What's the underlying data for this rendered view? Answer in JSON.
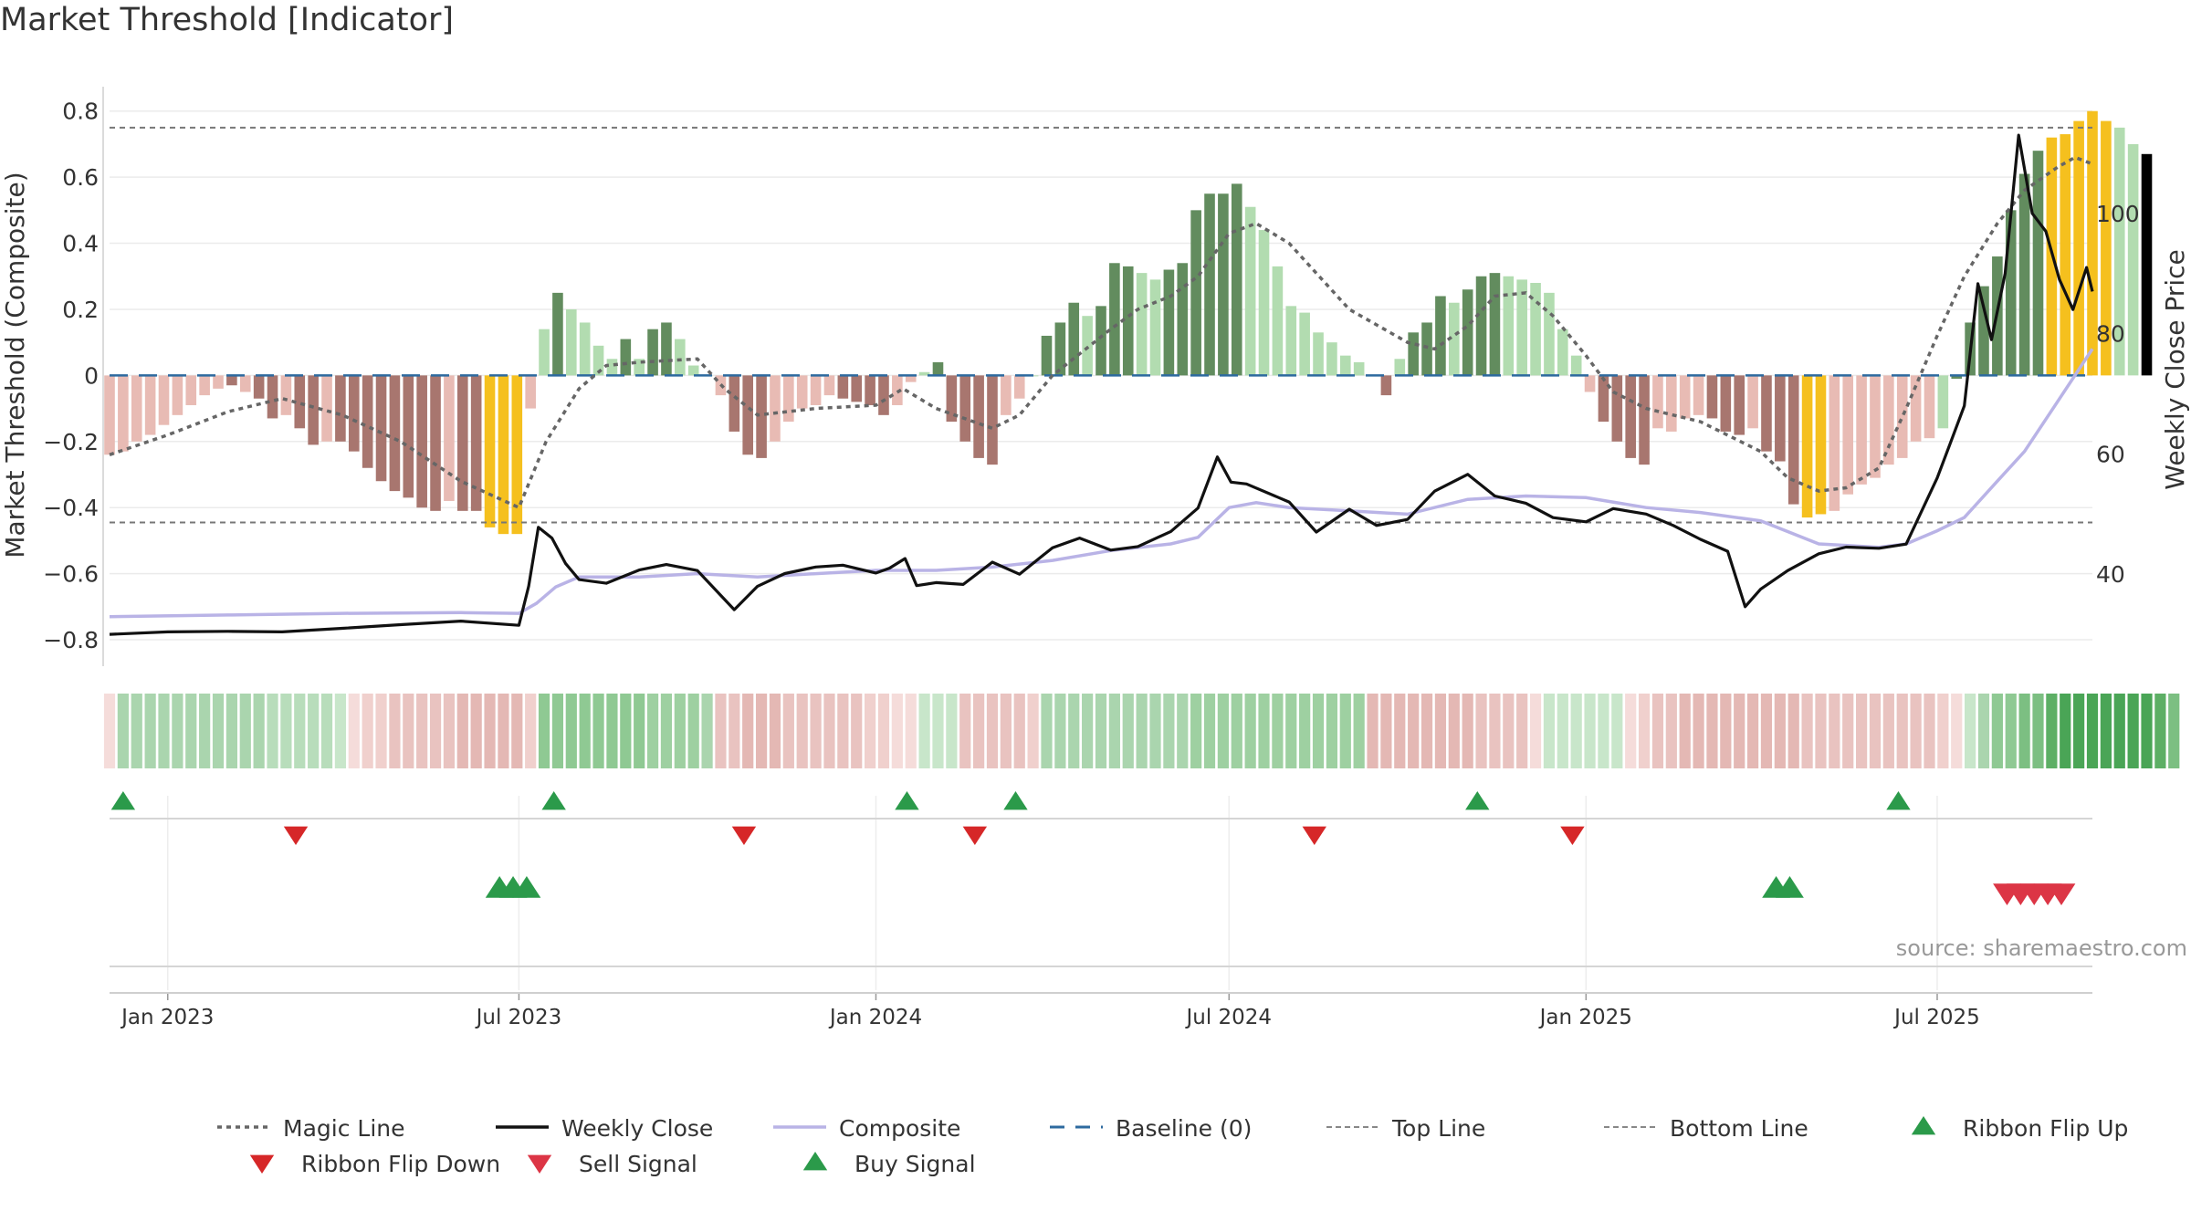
{
  "chart_data": {
    "type": "bar",
    "title": "Market Threshold [Indicator]",
    "ylabel_left": "Market Threshold (Composite)",
    "ylabel_right": "Weekly Close Price",
    "source": "source: sharemaestro.com",
    "left_axis": {
      "ylim": [
        -0.88,
        0.86
      ],
      "ticks": [
        -0.8,
        -0.6,
        -0.4,
        -0.2,
        0,
        0.2,
        0.4,
        0.6,
        0.8
      ],
      "tick_labels": [
        "−0.8",
        "−0.6",
        "−0.4",
        "−0.2",
        "0",
        "0.2",
        "0.4",
        "0.6",
        "0.8"
      ]
    },
    "right_axis": {
      "ylim": [
        24.7,
        120.3
      ],
      "ticks": [
        40,
        60,
        80,
        100
      ],
      "tick_labels": [
        "40",
        "60",
        "80",
        "100"
      ]
    },
    "top_line": 0.75,
    "bottom_line": -0.445,
    "x_axis": {
      "start": "2022-12-02",
      "end": "2025-09-19",
      "ticks": [
        "2023-01-01",
        "2023-07-01",
        "2024-01-01",
        "2024-07-01",
        "2025-01-01",
        "2025-07-01"
      ],
      "tick_labels": [
        "Jan 2023",
        "Jul 2023",
        "Jan 2024",
        "Jul 2024",
        "Jan 2025",
        "Jul 2025"
      ]
    },
    "composite_bars": {
      "start": "2022-12-02",
      "interval_days": 7,
      "values": [
        -0.24,
        -0.23,
        -0.2,
        -0.18,
        -0.15,
        -0.12,
        -0.09,
        -0.06,
        -0.04,
        -0.03,
        -0.05,
        -0.07,
        -0.13,
        -0.12,
        -0.16,
        -0.21,
        -0.2,
        -0.2,
        -0.23,
        -0.28,
        -0.32,
        -0.35,
        -0.37,
        -0.4,
        -0.41,
        -0.38,
        -0.41,
        -0.41,
        -0.46,
        -0.48,
        -0.48,
        -0.1,
        0.14,
        0.25,
        0.2,
        0.16,
        0.09,
        0.05,
        0.11,
        0.05,
        0.14,
        0.16,
        0.11,
        0.03,
        0.0,
        -0.06,
        -0.17,
        -0.24,
        -0.25,
        -0.2,
        -0.14,
        -0.1,
        -0.09,
        -0.06,
        -0.07,
        -0.08,
        -0.09,
        -0.12,
        -0.09,
        -0.02,
        0.01,
        0.04,
        -0.14,
        -0.2,
        -0.25,
        -0.27,
        -0.12,
        -0.07,
        0.0,
        0.12,
        0.16,
        0.22,
        0.18,
        0.21,
        0.34,
        0.33,
        0.31,
        0.29,
        0.32,
        0.34,
        0.5,
        0.55,
        0.55,
        0.58,
        0.51,
        0.44,
        0.33,
        0.21,
        0.19,
        0.13,
        0.1,
        0.06,
        0.04,
        0.0,
        -0.06,
        0.05,
        0.13,
        0.16,
        0.24,
        0.22,
        0.26,
        0.3,
        0.31,
        0.3,
        0.29,
        0.28,
        0.25,
        0.14,
        0.06,
        -0.05,
        -0.14,
        -0.2,
        -0.25,
        -0.27,
        -0.16,
        -0.17,
        -0.13,
        -0.12,
        -0.13,
        -0.17,
        -0.18,
        -0.16,
        -0.23,
        -0.26,
        -0.39,
        -0.43,
        -0.42,
        -0.41,
        -0.36,
        -0.33,
        -0.31,
        -0.27,
        -0.25,
        -0.2,
        -0.19,
        -0.16,
        -0.01,
        0.16,
        0.27,
        0.36,
        0.5,
        0.61,
        0.68,
        0.72,
        0.73,
        0.77,
        0.8,
        0.77,
        0.75,
        0.7,
        0.67
      ],
      "colors": [
        "#e8bbb4",
        "#e8bbb4",
        "#e8bbb4",
        "#e8bbb4",
        "#e8bbb4",
        "#e8bbb4",
        "#e8bbb4",
        "#e8bbb4",
        "#e8bbb4",
        "#a8766f",
        "#e8bbb4",
        "#a8766f",
        "#a8766f",
        "#e8bbb4",
        "#a8766f",
        "#a8766f",
        "#e8bbb4",
        "#a8766f",
        "#a8766f",
        "#a8766f",
        "#a8766f",
        "#a8766f",
        "#a8766f",
        "#a8766f",
        "#a8766f",
        "#e8bbb4",
        "#a8766f",
        "#a8766f",
        "#f5c01e",
        "#f5c01e",
        "#f5c01e",
        "#e8bbb4",
        "#b2dcb0",
        "#628c5e",
        "#b2dcb0",
        "#b2dcb0",
        "#b2dcb0",
        "#b2dcb0",
        "#628c5e",
        "#b2dcb0",
        "#628c5e",
        "#628c5e",
        "#b2dcb0",
        "#b2dcb0",
        "#b2dcb0",
        "#e8bbb4",
        "#a8766f",
        "#a8766f",
        "#a8766f",
        "#e8bbb4",
        "#e8bbb4",
        "#e8bbb4",
        "#e8bbb4",
        "#e8bbb4",
        "#a8766f",
        "#a8766f",
        "#a8766f",
        "#a8766f",
        "#e8bbb4",
        "#e8bbb4",
        "#b2dcb0",
        "#628c5e",
        "#a8766f",
        "#a8766f",
        "#a8766f",
        "#a8766f",
        "#e8bbb4",
        "#e8bbb4",
        "#b2dcb0",
        "#628c5e",
        "#628c5e",
        "#628c5e",
        "#b2dcb0",
        "#628c5e",
        "#628c5e",
        "#628c5e",
        "#b2dcb0",
        "#b2dcb0",
        "#628c5e",
        "#628c5e",
        "#628c5e",
        "#628c5e",
        "#628c5e",
        "#628c5e",
        "#b2dcb0",
        "#b2dcb0",
        "#b2dcb0",
        "#b2dcb0",
        "#b2dcb0",
        "#b2dcb0",
        "#b2dcb0",
        "#b2dcb0",
        "#b2dcb0",
        "#b2dcb0",
        "#a8766f",
        "#b2dcb0",
        "#628c5e",
        "#628c5e",
        "#628c5e",
        "#b2dcb0",
        "#628c5e",
        "#628c5e",
        "#628c5e",
        "#b2dcb0",
        "#b2dcb0",
        "#b2dcb0",
        "#b2dcb0",
        "#b2dcb0",
        "#b2dcb0",
        "#e8bbb4",
        "#a8766f",
        "#a8766f",
        "#a8766f",
        "#a8766f",
        "#e8bbb4",
        "#e8bbb4",
        "#e8bbb4",
        "#e8bbb4",
        "#a8766f",
        "#a8766f",
        "#a8766f",
        "#e8bbb4",
        "#a8766f",
        "#a8766f",
        "#a8766f",
        "#f5c01e",
        "#f5c01e",
        "#e8bbb4",
        "#e8bbb4",
        "#e8bbb4",
        "#e8bbb4",
        "#e8bbb4",
        "#e8bbb4",
        "#e8bbb4",
        "#e8bbb4",
        "#b2dcb0",
        "#628c5e",
        "#628c5e",
        "#628c5e",
        "#628c5e",
        "#628c5e",
        "#628c5e",
        "#628c5e",
        "#f5c01e",
        "#f5c01e",
        "#f5c01e",
        "#f5c01e",
        "#f5c01e",
        "#b2dcb0",
        "#b2dcb0"
      ]
    },
    "ribbon": {
      "start": "2022-12-02",
      "interval_days": 7,
      "colors": [
        "#f5dcda",
        "#aad5ae",
        "#aad5ae",
        "#aad5ae",
        "#aad5ae",
        "#aad5ae",
        "#aad5ae",
        "#aad5ae",
        "#aad5ae",
        "#aad5ae",
        "#aad5ae",
        "#aad5ae",
        "#b8ddbb",
        "#b8ddbb",
        "#b8ddbb",
        "#b8ddbb",
        "#b8ddbb",
        "#c8e6ca",
        "#f5dcda",
        "#f0d0cd",
        "#f0d0cd",
        "#e9c3c0",
        "#e9c3c0",
        "#e9c3c0",
        "#e9c3c0",
        "#e9c3c0",
        "#e4b8b4",
        "#e4b8b4",
        "#e4b8b4",
        "#e4b8b4",
        "#e4b8b4",
        "#f0d0cd",
        "#8fc993",
        "#8fc993",
        "#8fc993",
        "#8fc993",
        "#8fc993",
        "#8fc993",
        "#8fc993",
        "#8fc993",
        "#9ed0a1",
        "#9ed0a1",
        "#9ed0a1",
        "#9ed0a1",
        "#aad5ae",
        "#e9c3c0",
        "#e9c3c0",
        "#e4b8b4",
        "#e4b8b4",
        "#e4b8b4",
        "#e9c3c0",
        "#e9c3c0",
        "#e9c3c0",
        "#e9c3c0",
        "#e9c3c0",
        "#e9c3c0",
        "#f0d0cd",
        "#f0d0cd",
        "#f5dcda",
        "#f5dcda",
        "#c8e6ca",
        "#c8e6ca",
        "#c8e6ca",
        "#e9c3c0",
        "#e9c3c0",
        "#e9c3c0",
        "#e9c3c0",
        "#e9c3c0",
        "#f0d0cd",
        "#aad5ae",
        "#aad5ae",
        "#aad5ae",
        "#aad5ae",
        "#aad5ae",
        "#aad5ae",
        "#aad5ae",
        "#aad5ae",
        "#aad5ae",
        "#aad5ae",
        "#aad5ae",
        "#9ed0a1",
        "#9ed0a1",
        "#9ed0a1",
        "#9ed0a1",
        "#9ed0a1",
        "#9ed0a1",
        "#9ed0a1",
        "#9ed0a1",
        "#9ed0a1",
        "#9ed0a1",
        "#9ed0a1",
        "#9ed0a1",
        "#9ed0a1",
        "#e4b8b4",
        "#e4b8b4",
        "#e4b8b4",
        "#e4b8b4",
        "#e4b8b4",
        "#e4b8b4",
        "#e4b8b4",
        "#e4b8b4",
        "#e9c3c0",
        "#e9c3c0",
        "#e9c3c0",
        "#e9c3c0",
        "#f5dcda",
        "#c8e6ca",
        "#c8e6ca",
        "#c8e6ca",
        "#c8e6ca",
        "#c8e6ca",
        "#c8e6ca",
        "#f5dcda",
        "#f0d0cd",
        "#e9c3c0",
        "#e9c3c0",
        "#e4b8b4",
        "#e4b8b4",
        "#e4b8b4",
        "#e4b8b4",
        "#e4b8b4",
        "#e4b8b4",
        "#e4b8b4",
        "#e4b8b4",
        "#e4b8b4",
        "#e9c3c0",
        "#e9c3c0",
        "#e9c3c0",
        "#e9c3c0",
        "#e9c3c0",
        "#e9c3c0",
        "#e9c3c0",
        "#e9c3c0",
        "#e9c3c0",
        "#e9c3c0",
        "#f0d0cd",
        "#f5dcda",
        "#c8e6ca",
        "#aad5ae",
        "#8fc993",
        "#8fc993",
        "#7cbf82",
        "#7cbf82",
        "#5daf65",
        "#4aa556",
        "#4aa556",
        "#4aa556",
        "#4aa556",
        "#4aa556",
        "#4aa556",
        "#4aa556",
        "#5daf65",
        "#7cbf82"
      ]
    },
    "weekly_close": {
      "dates": [
        "2022-12-02",
        "2023-01-01",
        "2023-02-01",
        "2023-03-01",
        "2023-04-01",
        "2023-05-01",
        "2023-06-01",
        "2023-07-01",
        "2023-07-06",
        "2023-07-11",
        "2023-07-18",
        "2023-07-25",
        "2023-08-01",
        "2023-08-15",
        "2023-09-01",
        "2023-09-15",
        "2023-10-01",
        "2023-10-20",
        "2023-11-01",
        "2023-11-15",
        "2023-12-01",
        "2023-12-15",
        "2024-01-01",
        "2024-01-08",
        "2024-01-16",
        "2024-01-22",
        "2024-02-01",
        "2024-02-15",
        "2024-03-01",
        "2024-03-15",
        "2024-04-01",
        "2024-04-15",
        "2024-05-01",
        "2024-05-15",
        "2024-06-01",
        "2024-06-15",
        "2024-06-25",
        "2024-07-02",
        "2024-07-10",
        "2024-08-01",
        "2024-08-15",
        "2024-09-01",
        "2024-09-15",
        "2024-10-01",
        "2024-10-15",
        "2024-11-01",
        "2024-11-15",
        "2024-12-01",
        "2024-12-15",
        "2025-01-01",
        "2025-01-15",
        "2025-02-01",
        "2025-02-15",
        "2025-03-01",
        "2025-03-15",
        "2025-03-24",
        "2025-04-01",
        "2025-04-15",
        "2025-05-01",
        "2025-05-15",
        "2025-06-01",
        "2025-06-15",
        "2025-07-01",
        "2025-07-08",
        "2025-07-15",
        "2025-07-22",
        "2025-07-29",
        "2025-08-05",
        "2025-08-12",
        "2025-08-19",
        "2025-08-26",
        "2025-09-02",
        "2025-09-09",
        "2025-09-16",
        "2025-09-19"
      ],
      "values": [
        30,
        30.4,
        30.5,
        30.4,
        31,
        31.6,
        32.2,
        31.5,
        38,
        47.8,
        46,
        41.8,
        39.1,
        38.5,
        40.7,
        41.6,
        40.6,
        34.1,
        38,
        40.1,
        41.2,
        41.5,
        40.2,
        41,
        42.6,
        38.1,
        38.6,
        38.3,
        42,
        40,
        44.4,
        46,
        44,
        44.6,
        47.1,
        51,
        59.5,
        55.3,
        55,
        52,
        47,
        50.8,
        48.1,
        49.1,
        53.8,
        56.6,
        53,
        51.8,
        49.4,
        48.7,
        50.9,
        50,
        48.1,
        45.8,
        43.8,
        34.6,
        37.5,
        40.6,
        43.4,
        44.5,
        44.3,
        45,
        56,
        62,
        68,
        88.3,
        79,
        90,
        113,
        100,
        97,
        89,
        84,
        91,
        87
      ]
    },
    "composite_line": {
      "dates": [
        "2022-12-02",
        "2023-02-01",
        "2023-04-01",
        "2023-06-01",
        "2023-07-01",
        "2023-07-10",
        "2023-07-20",
        "2023-08-01",
        "2023-09-01",
        "2023-10-01",
        "2023-11-01",
        "2023-12-01",
        "2024-01-01",
        "2024-02-01",
        "2024-03-01",
        "2024-04-01",
        "2024-05-01",
        "2024-06-01",
        "2024-06-15",
        "2024-07-01",
        "2024-07-15",
        "2024-08-01",
        "2024-09-01",
        "2024-10-01",
        "2024-11-01",
        "2024-12-01",
        "2025-01-01",
        "2025-02-01",
        "2025-03-01",
        "2025-04-01",
        "2025-05-01",
        "2025-06-01",
        "2025-06-15",
        "2025-07-01",
        "2025-07-15",
        "2025-08-01",
        "2025-08-15",
        "2025-09-01",
        "2025-09-19"
      ],
      "values": [
        -0.73,
        -0.725,
        -0.72,
        -0.718,
        -0.72,
        -0.69,
        -0.64,
        -0.61,
        -0.61,
        -0.6,
        -0.61,
        -0.6,
        -0.59,
        -0.59,
        -0.58,
        -0.56,
        -0.53,
        -0.51,
        -0.49,
        -0.4,
        -0.385,
        -0.4,
        -0.41,
        -0.42,
        -0.375,
        -0.365,
        -0.37,
        -0.4,
        -0.415,
        -0.44,
        -0.51,
        -0.52,
        -0.51,
        -0.47,
        -0.43,
        -0.32,
        -0.23,
        -0.08,
        0.08
      ]
    },
    "magic_line": {
      "dates": [
        "2022-12-02",
        "2023-01-01",
        "2023-02-01",
        "2023-03-01",
        "2023-04-01",
        "2023-05-01",
        "2023-06-01",
        "2023-07-01",
        "2023-07-15",
        "2023-08-01",
        "2023-08-15",
        "2023-09-01",
        "2023-10-01",
        "2023-10-15",
        "2023-11-01",
        "2023-12-01",
        "2024-01-01",
        "2024-01-15",
        "2024-02-01",
        "2024-03-01",
        "2024-03-15",
        "2024-04-01",
        "2024-05-01",
        "2024-05-15",
        "2024-06-01",
        "2024-06-15",
        "2024-07-01",
        "2024-07-15",
        "2024-08-01",
        "2024-09-01",
        "2024-10-01",
        "2024-10-15",
        "2024-11-01",
        "2024-11-15",
        "2024-12-01",
        "2024-12-15",
        "2025-01-01",
        "2025-01-15",
        "2025-02-01",
        "2025-03-01",
        "2025-04-01",
        "2025-04-15",
        "2025-05-01",
        "2025-05-15",
        "2025-06-01",
        "2025-06-15",
        "2025-07-01",
        "2025-07-15",
        "2025-08-01",
        "2025-08-15",
        "2025-09-01",
        "2025-09-10",
        "2025-09-19"
      ],
      "values": [
        -0.24,
        -0.18,
        -0.11,
        -0.07,
        -0.12,
        -0.2,
        -0.32,
        -0.4,
        -0.2,
        -0.04,
        0.03,
        0.04,
        0.05,
        -0.04,
        -0.12,
        -0.1,
        -0.09,
        -0.04,
        -0.1,
        -0.16,
        -0.12,
        0.0,
        0.14,
        0.2,
        0.24,
        0.3,
        0.43,
        0.46,
        0.4,
        0.2,
        0.1,
        0.08,
        0.15,
        0.24,
        0.25,
        0.18,
        0.06,
        -0.05,
        -0.1,
        -0.14,
        -0.23,
        -0.31,
        -0.35,
        -0.34,
        -0.28,
        -0.1,
        0.12,
        0.3,
        0.46,
        0.56,
        0.63,
        0.66,
        0.64
      ]
    },
    "signals": {
      "ribbon_flip_up": [
        "2022-12-09",
        "2023-07-19",
        "2024-01-17",
        "2024-03-13",
        "2024-11-06",
        "2025-06-11"
      ],
      "ribbon_flip_down": [
        "2023-03-08",
        "2023-10-25",
        "2024-02-21",
        "2024-08-14",
        "2024-12-25"
      ],
      "buy_signal": [
        "2023-06-21",
        "2023-06-28",
        "2023-07-05",
        "2025-04-09",
        "2025-04-16"
      ],
      "sell_signal": [
        "2025-08-06",
        "2025-08-13",
        "2025-08-20",
        "2025-08-27",
        "2025-09-03"
      ]
    },
    "legend": {
      "position": "bottom",
      "items": [
        {
          "label": "Magic Line",
          "kind": "dotted",
          "color": "#666666"
        },
        {
          "label": "Weekly Close",
          "kind": "solid",
          "color": "#111111"
        },
        {
          "label": "Composite",
          "kind": "solid",
          "color": "#b9b3e6"
        },
        {
          "label": "Baseline (0)",
          "kind": "dashed",
          "color": "#2d6a9f"
        },
        {
          "label": "Top Line",
          "kind": "thin-dashed",
          "color": "#888888"
        },
        {
          "label": "Bottom Line",
          "kind": "thin-dashed",
          "color": "#888888"
        },
        {
          "label": "Ribbon Flip Up",
          "kind": "tri-up",
          "color": "#2b9a4a"
        },
        {
          "label": "Ribbon Flip Down",
          "kind": "tri-down",
          "color": "#d62728"
        },
        {
          "label": "Sell Signal",
          "kind": "tri-down",
          "color": "#dc3545"
        },
        {
          "label": "Buy Signal",
          "kind": "tri-up",
          "color": "#2b9a4a"
        }
      ]
    }
  }
}
